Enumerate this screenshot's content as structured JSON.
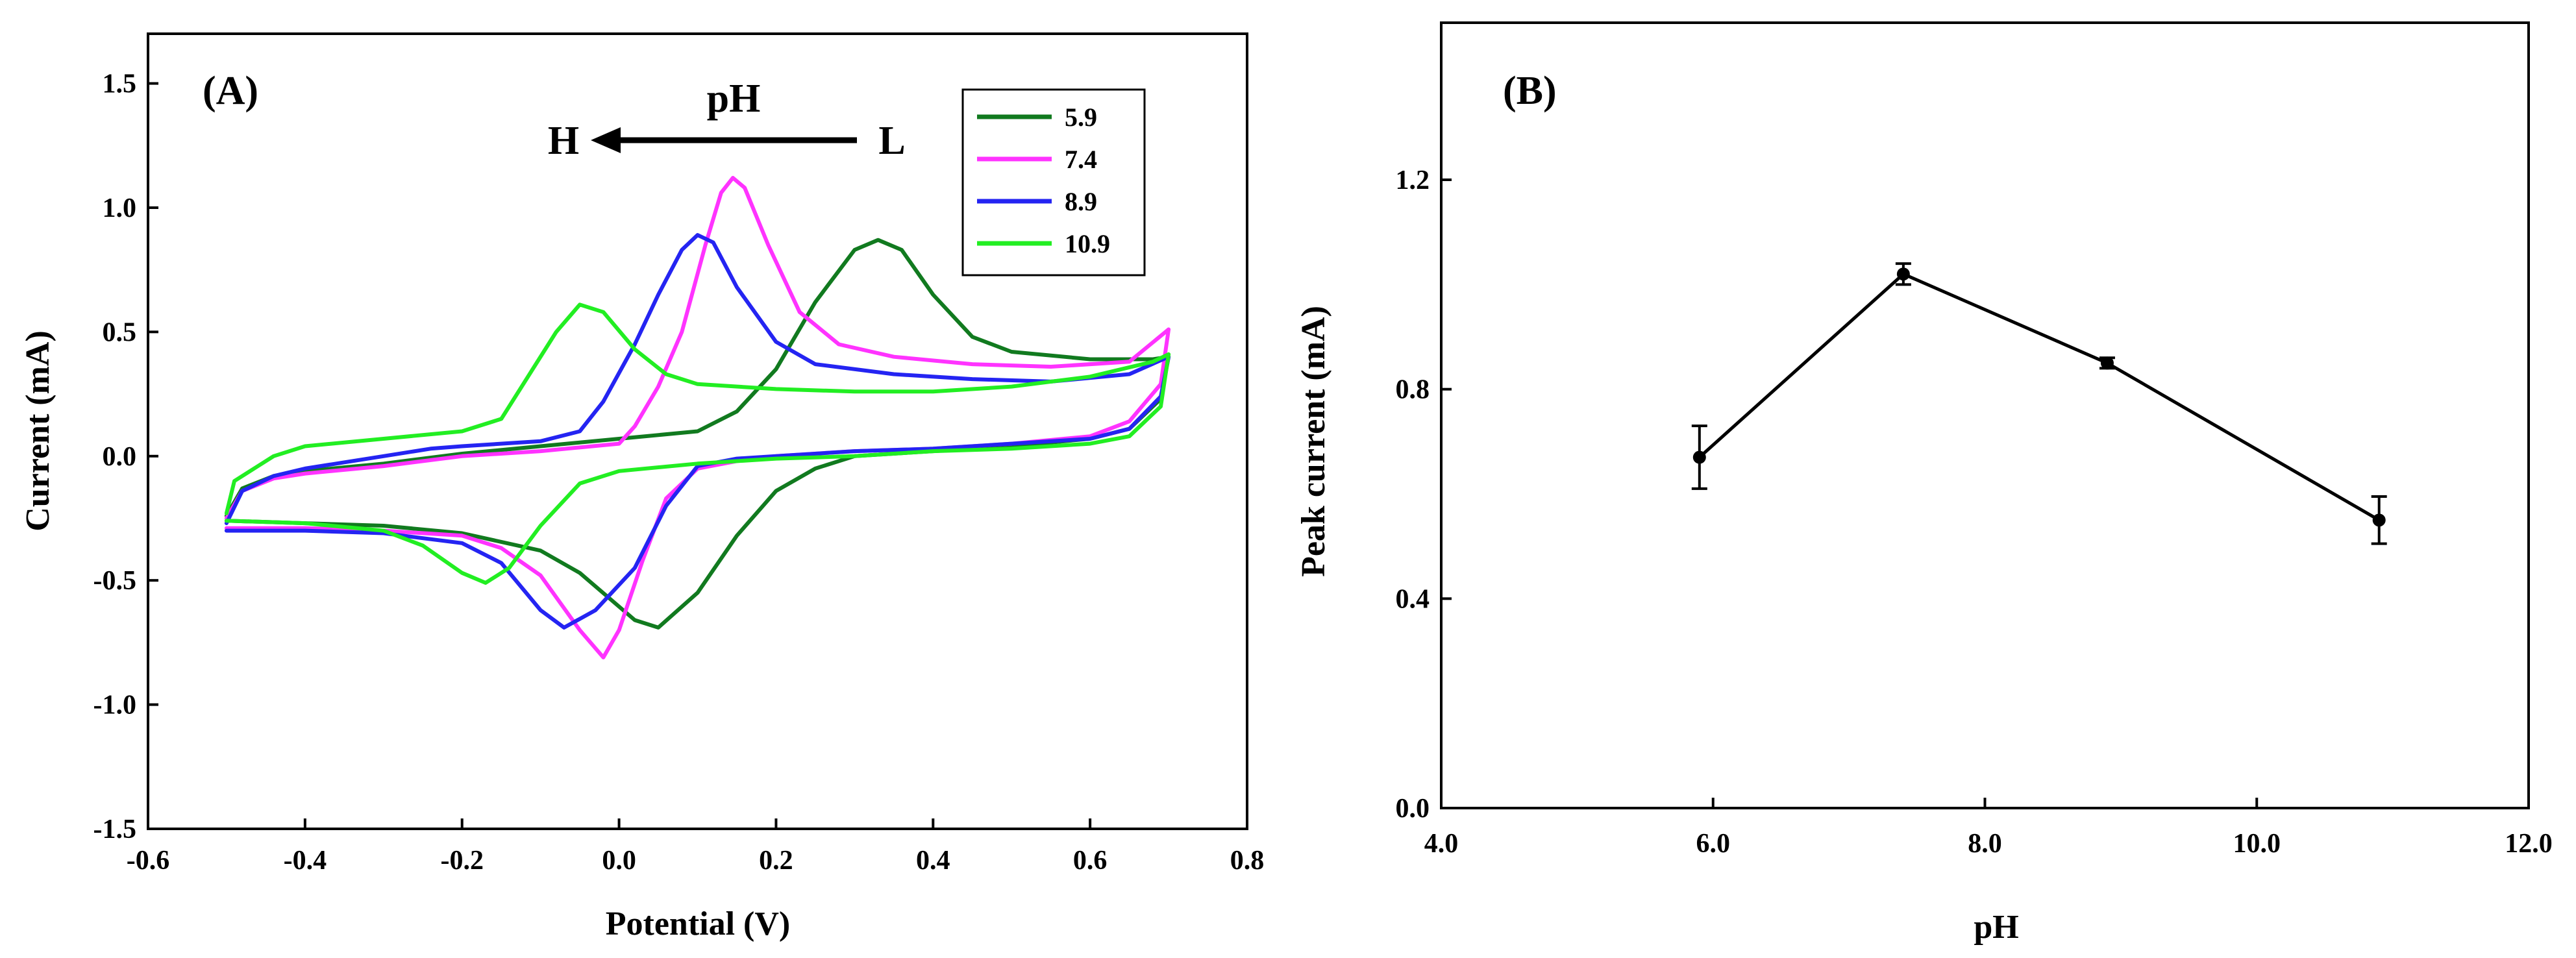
{
  "chart_data": [
    {
      "panel": "(A)",
      "type": "line",
      "xlabel": "Potential (V)",
      "ylabel": "Current (mA)",
      "xlim": [
        -0.6,
        0.8
      ],
      "ylim": [
        -1.5,
        1.7
      ],
      "xticks": [
        -0.6,
        -0.4,
        -0.2,
        0.0,
        0.2,
        0.4,
        0.6,
        0.8
      ],
      "xtick_labels": [
        "-0.6",
        "-0.4",
        "-0.2",
        "0.0",
        "0.2",
        "0.4",
        "0.6",
        "0.8"
      ],
      "yticks": [
        -1.5,
        -1.0,
        -0.5,
        0.0,
        0.5,
        1.0,
        1.5
      ],
      "ytick_labels": [
        "-1.5",
        "-1.0",
        "-0.5",
        "0.0",
        "0.5",
        "1.0",
        "1.5"
      ],
      "grid": false,
      "legend": "top-right",
      "annotation": {
        "title": "pH",
        "left": "H",
        "right": "L"
      },
      "series": [
        {
          "name": "5.9",
          "color": "#117a1f",
          "forward": [
            [
              -0.5,
              -0.24
            ],
            [
              -0.48,
              -0.13
            ],
            [
              -0.44,
              -0.08
            ],
            [
              -0.4,
              -0.06
            ],
            [
              -0.3,
              -0.03
            ],
            [
              -0.2,
              0.01
            ],
            [
              -0.1,
              0.04
            ],
            [
              0.0,
              0.07
            ],
            [
              0.1,
              0.1
            ],
            [
              0.15,
              0.18
            ],
            [
              0.2,
              0.35
            ],
            [
              0.25,
              0.62
            ],
            [
              0.3,
              0.83
            ],
            [
              0.33,
              0.87
            ],
            [
              0.36,
              0.83
            ],
            [
              0.4,
              0.65
            ],
            [
              0.45,
              0.48
            ],
            [
              0.5,
              0.42
            ],
            [
              0.6,
              0.39
            ],
            [
              0.68,
              0.39
            ],
            [
              0.7,
              0.4
            ]
          ],
          "reverse": [
            [
              0.7,
              0.4
            ],
            [
              0.69,
              0.23
            ],
            [
              0.65,
              0.11
            ],
            [
              0.6,
              0.07
            ],
            [
              0.5,
              0.04
            ],
            [
              0.4,
              0.02
            ],
            [
              0.3,
              0.0
            ],
            [
              0.25,
              -0.05
            ],
            [
              0.2,
              -0.14
            ],
            [
              0.15,
              -0.32
            ],
            [
              0.1,
              -0.55
            ],
            [
              0.05,
              -0.69
            ],
            [
              0.02,
              -0.66
            ],
            [
              -0.05,
              -0.47
            ],
            [
              -0.1,
              -0.38
            ],
            [
              -0.2,
              -0.31
            ],
            [
              -0.3,
              -0.28
            ],
            [
              -0.4,
              -0.27
            ],
            [
              -0.5,
              -0.26
            ]
          ]
        },
        {
          "name": "7.4",
          "color": "#ff33ff",
          "forward": [
            [
              -0.5,
              -0.25
            ],
            [
              -0.48,
              -0.14
            ],
            [
              -0.44,
              -0.09
            ],
            [
              -0.4,
              -0.07
            ],
            [
              -0.3,
              -0.04
            ],
            [
              -0.2,
              0.0
            ],
            [
              -0.1,
              0.02
            ],
            [
              0.0,
              0.05
            ],
            [
              0.02,
              0.12
            ],
            [
              0.05,
              0.28
            ],
            [
              0.08,
              0.5
            ],
            [
              0.11,
              0.85
            ],
            [
              0.13,
              1.06
            ],
            [
              0.145,
              1.12
            ],
            [
              0.16,
              1.08
            ],
            [
              0.19,
              0.85
            ],
            [
              0.23,
              0.58
            ],
            [
              0.28,
              0.45
            ],
            [
              0.35,
              0.4
            ],
            [
              0.45,
              0.37
            ],
            [
              0.55,
              0.36
            ],
            [
              0.65,
              0.38
            ],
            [
              0.7,
              0.51
            ]
          ],
          "reverse": [
            [
              0.7,
              0.51
            ],
            [
              0.69,
              0.29
            ],
            [
              0.65,
              0.14
            ],
            [
              0.6,
              0.08
            ],
            [
              0.5,
              0.05
            ],
            [
              0.4,
              0.03
            ],
            [
              0.3,
              0.02
            ],
            [
              0.2,
              0.0
            ],
            [
              0.15,
              -0.02
            ],
            [
              0.1,
              -0.05
            ],
            [
              0.06,
              -0.17
            ],
            [
              0.03,
              -0.42
            ],
            [
              0.0,
              -0.7
            ],
            [
              -0.02,
              -0.81
            ],
            [
              -0.05,
              -0.7
            ],
            [
              -0.1,
              -0.48
            ],
            [
              -0.15,
              -0.37
            ],
            [
              -0.2,
              -0.32
            ],
            [
              -0.3,
              -0.3
            ],
            [
              -0.4,
              -0.29
            ],
            [
              -0.5,
              -0.29
            ]
          ]
        },
        {
          "name": "8.9",
          "color": "#2424f2",
          "forward": [
            [
              -0.5,
              -0.27
            ],
            [
              -0.48,
              -0.14
            ],
            [
              -0.44,
              -0.08
            ],
            [
              -0.4,
              -0.05
            ],
            [
              -0.3,
              0.0
            ],
            [
              -0.24,
              0.03
            ],
            [
              -0.2,
              0.04
            ],
            [
              -0.1,
              0.06
            ],
            [
              -0.05,
              0.1
            ],
            [
              -0.02,
              0.22
            ],
            [
              0.02,
              0.45
            ],
            [
              0.05,
              0.65
            ],
            [
              0.08,
              0.83
            ],
            [
              0.1,
              0.89
            ],
            [
              0.12,
              0.86
            ],
            [
              0.15,
              0.68
            ],
            [
              0.2,
              0.46
            ],
            [
              0.25,
              0.37
            ],
            [
              0.35,
              0.33
            ],
            [
              0.45,
              0.31
            ],
            [
              0.55,
              0.3
            ],
            [
              0.65,
              0.33
            ],
            [
              0.7,
              0.4
            ]
          ],
          "reverse": [
            [
              0.7,
              0.4
            ],
            [
              0.69,
              0.24
            ],
            [
              0.65,
              0.11
            ],
            [
              0.6,
              0.07
            ],
            [
              0.5,
              0.05
            ],
            [
              0.4,
              0.03
            ],
            [
              0.3,
              0.02
            ],
            [
              0.2,
              0.0
            ],
            [
              0.15,
              -0.01
            ],
            [
              0.1,
              -0.04
            ],
            [
              0.06,
              -0.2
            ],
            [
              0.02,
              -0.45
            ],
            [
              -0.03,
              -0.62
            ],
            [
              -0.07,
              -0.69
            ],
            [
              -0.1,
              -0.62
            ],
            [
              -0.15,
              -0.43
            ],
            [
              -0.2,
              -0.35
            ],
            [
              -0.3,
              -0.31
            ],
            [
              -0.4,
              -0.3
            ],
            [
              -0.5,
              -0.3
            ]
          ]
        },
        {
          "name": "10.9",
          "color": "#22ee22",
          "forward": [
            [
              -0.5,
              -0.23
            ],
            [
              -0.49,
              -0.1
            ],
            [
              -0.46,
              -0.04
            ],
            [
              -0.44,
              0.0
            ],
            [
              -0.4,
              0.04
            ],
            [
              -0.3,
              0.07
            ],
            [
              -0.2,
              0.1
            ],
            [
              -0.15,
              0.15
            ],
            [
              -0.12,
              0.3
            ],
            [
              -0.08,
              0.5
            ],
            [
              -0.05,
              0.61
            ],
            [
              -0.02,
              0.58
            ],
            [
              0.02,
              0.43
            ],
            [
              0.06,
              0.33
            ],
            [
              0.1,
              0.29
            ],
            [
              0.2,
              0.27
            ],
            [
              0.3,
              0.26
            ],
            [
              0.4,
              0.26
            ],
            [
              0.5,
              0.28
            ],
            [
              0.6,
              0.32
            ],
            [
              0.68,
              0.38
            ],
            [
              0.7,
              0.41
            ]
          ],
          "reverse": [
            [
              0.7,
              0.41
            ],
            [
              0.69,
              0.2
            ],
            [
              0.65,
              0.08
            ],
            [
              0.6,
              0.05
            ],
            [
              0.5,
              0.03
            ],
            [
              0.4,
              0.02
            ],
            [
              0.3,
              0.0
            ],
            [
              0.2,
              -0.01
            ],
            [
              0.1,
              -0.03
            ],
            [
              0.0,
              -0.06
            ],
            [
              -0.05,
              -0.11
            ],
            [
              -0.1,
              -0.28
            ],
            [
              -0.14,
              -0.45
            ],
            [
              -0.17,
              -0.51
            ],
            [
              -0.2,
              -0.47
            ],
            [
              -0.25,
              -0.36
            ],
            [
              -0.3,
              -0.3
            ],
            [
              -0.4,
              -0.27
            ],
            [
              -0.5,
              -0.26
            ]
          ]
        }
      ]
    },
    {
      "panel": "(B)",
      "type": "line",
      "xlabel": "pH",
      "ylabel": "Peak current (mA)",
      "xlim": [
        4.0,
        12.0
      ],
      "ylim": [
        0.0,
        1.5
      ],
      "xticks": [
        4.0,
        6.0,
        8.0,
        10.0,
        12.0
      ],
      "xtick_labels": [
        "4.0",
        "6.0",
        "8.0",
        "10.0",
        "12.0"
      ],
      "yticks": [
        0.0,
        0.4,
        0.8,
        1.2
      ],
      "ytick_labels": [
        "0.0",
        "0.4",
        "0.8",
        "1.2"
      ],
      "grid": false,
      "series": [
        {
          "name": "Peak current",
          "color": "#000000",
          "x": [
            5.9,
            7.4,
            8.9,
            10.9
          ],
          "y": [
            0.67,
            1.02,
            0.85,
            0.55
          ],
          "error": [
            0.06,
            0.02,
            0.01,
            0.045
          ]
        }
      ]
    }
  ]
}
